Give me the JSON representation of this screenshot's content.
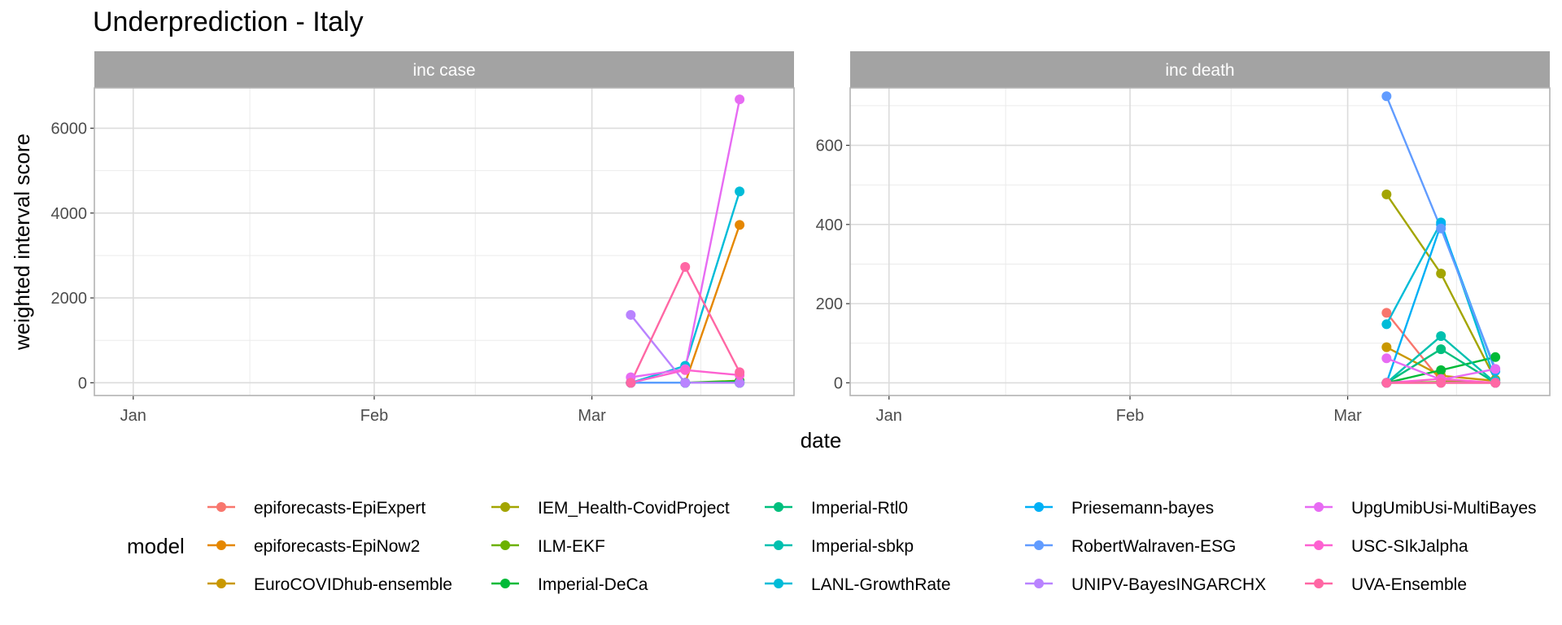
{
  "chart_data": {
    "type": "line",
    "title": "Underprediction - Italy",
    "xlabel": "date",
    "ylabel": "weighted interval score",
    "x_ticks": [
      "Jan",
      "Feb",
      "Mar"
    ],
    "x_range": [
      "2020-12-27",
      "2021-03-27"
    ],
    "dates": [
      "2021-03-06",
      "2021-03-13",
      "2021-03-20"
    ],
    "legend": {
      "title": "model",
      "position": "bottom",
      "columns": 5
    },
    "grid": true,
    "models": [
      {
        "name": "epiforecasts-EpiExpert",
        "color": "#F8766D"
      },
      {
        "name": "epiforecasts-EpiNow2",
        "color": "#E58700"
      },
      {
        "name": "EuroCOVIDhub-ensemble",
        "color": "#C99800"
      },
      {
        "name": "IEM_Health-CovidProject",
        "color": "#A3A500"
      },
      {
        "name": "ILM-EKF",
        "color": "#6BB100"
      },
      {
        "name": "Imperial-DeCa",
        "color": "#00BA38"
      },
      {
        "name": "Imperial-Rtl0",
        "color": "#00BF7D"
      },
      {
        "name": "Imperial-sbkp",
        "color": "#00C0AF"
      },
      {
        "name": "LANL-GrowthRate",
        "color": "#00BCD8"
      },
      {
        "name": "Priesemann-bayes",
        "color": "#00B0F6"
      },
      {
        "name": "RobertWalraven-ESG",
        "color": "#619CFF"
      },
      {
        "name": "UNIPV-BayesINGARCHX",
        "color": "#B983FF"
      },
      {
        "name": "UpgUmibUsi-MultiBayes",
        "color": "#E76BF3"
      },
      {
        "name": "USC-SIkJalpha",
        "color": "#FD61D1"
      },
      {
        "name": "UVA-Ensemble",
        "color": "#FF67A4"
      }
    ],
    "panels": [
      {
        "strip": "inc case",
        "ylim": [
          -300,
          6950
        ],
        "y_ticks": [
          0,
          2000,
          4000,
          6000
        ],
        "y_tick_labels": [
          "0",
          "2000",
          "4000",
          "6000"
        ],
        "series": [
          {
            "name": "epiforecasts-EpiExpert",
            "values": [
              0,
              0,
              0
            ]
          },
          {
            "name": "epiforecasts-EpiNow2",
            "values": [
              0,
              0,
              3720
            ]
          },
          {
            "name": "EuroCOVIDhub-ensemble",
            "values": [
              0,
              0,
              0
            ]
          },
          {
            "name": "IEM_Health-CovidProject",
            "values": [
              0,
              0,
              0
            ]
          },
          {
            "name": "ILM-EKF",
            "values": [
              0,
              0,
              50
            ]
          },
          {
            "name": "Imperial-DeCa",
            "values": [
              0,
              0,
              30
            ]
          },
          {
            "name": "Imperial-Rtl0",
            "values": [
              0,
              0,
              0
            ]
          },
          {
            "name": "Imperial-sbkp",
            "values": [
              0,
              0,
              0
            ]
          },
          {
            "name": "LANL-GrowthRate",
            "values": [
              0,
              400,
              4510
            ]
          },
          {
            "name": "Priesemann-bayes",
            "values": [
              0,
              0,
              0
            ]
          },
          {
            "name": "RobertWalraven-ESG",
            "values": [
              0,
              0,
              0
            ]
          },
          {
            "name": "UNIPV-BayesINGARCHX",
            "values": [
              1600,
              0,
              0
            ]
          },
          {
            "name": "UpgUmibUsi-MultiBayes",
            "values": [
              130,
              320,
              6680
            ]
          },
          {
            "name": "USC-SIkJalpha",
            "values": [
              0,
              300,
              180
            ]
          },
          {
            "name": "UVA-Ensemble",
            "values": [
              0,
              2730,
              250
            ]
          }
        ]
      },
      {
        "strip": "inc death",
        "ylim": [
          -32,
          745
        ],
        "y_ticks": [
          0,
          200,
          400,
          600
        ],
        "y_tick_labels": [
          "0",
          "200",
          "400",
          "600"
        ],
        "series": [
          {
            "name": "epiforecasts-EpiExpert",
            "values": [
              177,
              5,
              0
            ]
          },
          {
            "name": "epiforecasts-EpiNow2",
            "values": [
              0,
              0,
              0
            ]
          },
          {
            "name": "EuroCOVIDhub-ensemble",
            "values": [
              90,
              18,
              5
            ]
          },
          {
            "name": "IEM_Health-CovidProject",
            "values": [
              476,
              276,
              8
            ]
          },
          {
            "name": "ILM-EKF",
            "values": [
              0,
              2,
              0
            ]
          },
          {
            "name": "Imperial-DeCa",
            "values": [
              0,
              32,
              65
            ]
          },
          {
            "name": "Imperial-Rtl0",
            "values": [
              0,
              85,
              0
            ]
          },
          {
            "name": "Imperial-sbkp",
            "values": [
              0,
              118,
              0
            ]
          },
          {
            "name": "LANL-GrowthRate",
            "values": [
              148,
              405,
              5
            ]
          },
          {
            "name": "Priesemann-bayes",
            "values": [
              0,
              400,
              30
            ]
          },
          {
            "name": "RobertWalraven-ESG",
            "values": [
              724,
              390,
              35
            ]
          },
          {
            "name": "UNIPV-BayesINGARCHX",
            "values": [
              0,
              0,
              0
            ]
          },
          {
            "name": "UpgUmibUsi-MultiBayes",
            "values": [
              62,
              8,
              35
            ]
          },
          {
            "name": "USC-SIkJalpha",
            "values": [
              0,
              10,
              0
            ]
          },
          {
            "name": "UVA-Ensemble",
            "values": [
              0,
              0,
              0
            ]
          }
        ]
      }
    ]
  }
}
